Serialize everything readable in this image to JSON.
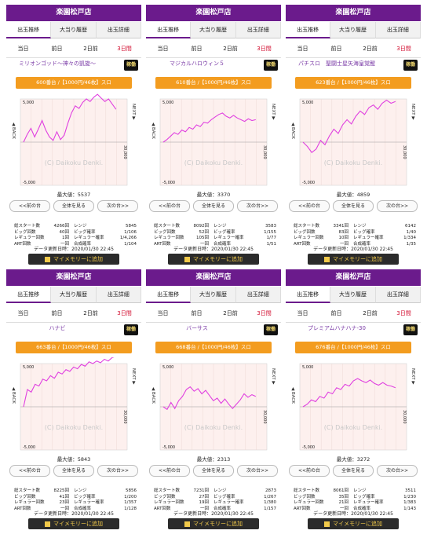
{
  "shop_name": "楽園松戸店",
  "tabs": [
    "出玉推移",
    "大当り履歴",
    "出玉詳細"
  ],
  "days": [
    "当日",
    "前日",
    "2日前",
    "3日間"
  ],
  "state_label": "稼働",
  "chart_axis": {
    "top": "5,000",
    "bottom": "-5,000",
    "right": "30,000",
    "left_side": "BACK",
    "right_side": "NEXT"
  },
  "watermark": "(C) Daikoku Denki.",
  "nav": {
    "prev": "<<前の台",
    "all": "全体を見る",
    "next": "次の台>>"
  },
  "labels": {
    "max": "最大値：",
    "total_start": "総スタート数",
    "big": "ビッグ回数",
    "regular": "レギュラー回数",
    "art": "ART回数",
    "rate": "レンジ",
    "big_prob": "ビッグ確率",
    "reg_prob": "レギュラー確率",
    "combined": "合成確率",
    "updated": "データ更新日時：",
    "my_memory": "マイメモリーに追加"
  },
  "accent_color": "#6b1b8c",
  "line_color": "#e040e0",
  "machines": [
    {
      "name": "ミリオンゴッド～神々の凱旋～",
      "state": "稼働",
      "machine_info": "600番台 /【1000円/46枚】スロ",
      "max": "5537",
      "total_start": "4266回",
      "big": "40回",
      "regular": "1回",
      "art": "一回",
      "range": "5845",
      "big_prob": "1/106",
      "reg_prob": "1/4,266",
      "combined": "1/104",
      "updated": "2020/01/30 22:45",
      "series": [
        0,
        900,
        1600,
        600,
        1500,
        2500,
        1400,
        600,
        200,
        1200,
        300,
        800,
        2200,
        3400,
        4200,
        3900,
        4600,
        5000,
        4700,
        5200,
        5537,
        5100,
        4700,
        5000,
        4400,
        3800
      ]
    },
    {
      "name": "マジカルハロウィン５",
      "state": "稼働",
      "machine_info": "610番台 /【1000円/46枚】スロ",
      "max": "3370",
      "total_start": "8092回",
      "big": "52回",
      "regular": "105回",
      "art": "一回",
      "range": "3583",
      "big_prob": "1/155",
      "reg_prob": "1/77",
      "combined": "1/51",
      "updated": "2020/01/30 22:45",
      "series": [
        0,
        300,
        700,
        1100,
        900,
        1400,
        1200,
        1700,
        1500,
        2000,
        1800,
        2300,
        2200,
        2600,
        2900,
        3200,
        3370,
        3000,
        2800,
        3100,
        2800,
        2600,
        2400,
        2700,
        2500,
        2600
      ]
    },
    {
      "name": "パチスロ　聖闘士星矢海皇覚醒",
      "state": "稼働",
      "machine_info": "623番台 /【1000円/46枚】スロ",
      "max": "4859",
      "total_start": "3341回",
      "big": "83回",
      "regular": "10回",
      "art": "一回",
      "range": "6142",
      "big_prob": "1/40",
      "reg_prob": "1/334",
      "combined": "1/35",
      "updated": "2020/01/30 22:45",
      "series": [
        0,
        -500,
        -1200,
        -800,
        200,
        -300,
        700,
        1500,
        1000,
        2000,
        2600,
        2100,
        3000,
        3600,
        3200,
        4000,
        4300,
        3800,
        4500,
        4859,
        4500,
        4700
      ]
    },
    {
      "name": "ハナビ",
      "state": "稼働",
      "machine_info": "663番台 /【1000円/46枚】スロ",
      "max": "5843",
      "total_start": "8225回",
      "big": "41回",
      "regular": "23回",
      "art": "一回",
      "range": "5856",
      "big_prob": "1/200",
      "reg_prob": "1/357",
      "combined": "1/128",
      "updated": "2020/01/30 22:45",
      "series": [
        0,
        2000,
        1700,
        2600,
        2400,
        3200,
        3000,
        3600,
        3300,
        4000,
        3800,
        4300,
        4100,
        4600,
        4400,
        4900,
        4700,
        5200,
        5000,
        5300,
        5100,
        5500,
        5300,
        5700,
        5843
      ]
    },
    {
      "name": "バーサス",
      "state": "稼働",
      "machine_info": "668番台 /【1000円/46枚】スロ",
      "max": "2313",
      "total_start": "7231回",
      "big": "27回",
      "regular": "19回",
      "art": "一回",
      "range": "2873",
      "big_prob": "1/267",
      "reg_prob": "1/380",
      "combined": "1/157",
      "updated": "2020/01/30 22:45",
      "series": [
        0,
        -300,
        500,
        -200,
        700,
        1200,
        2000,
        2313,
        1800,
        2100,
        1500,
        1900,
        1300,
        700,
        1000,
        400,
        900,
        300,
        -200,
        300,
        800,
        1500,
        1100,
        1400,
        1200
      ]
    },
    {
      "name": "プレミアムハナハナ-30",
      "state": "稼働",
      "machine_info": "676番台 /【1000円/46枚】スロ",
      "max": "3272",
      "total_start": "8061回",
      "big": "35回",
      "regular": "21回",
      "art": "一回",
      "range": "3511",
      "big_prob": "1/230",
      "reg_prob": "1/383",
      "combined": "1/143",
      "updated": "2020/01/30 22:45",
      "series": [
        0,
        300,
        800,
        600,
        1200,
        1000,
        1700,
        1500,
        2200,
        2000,
        2600,
        2400,
        3000,
        3272,
        3000,
        2800,
        3100,
        2700,
        2500,
        2800,
        2500,
        2400,
        2200
      ]
    }
  ]
}
